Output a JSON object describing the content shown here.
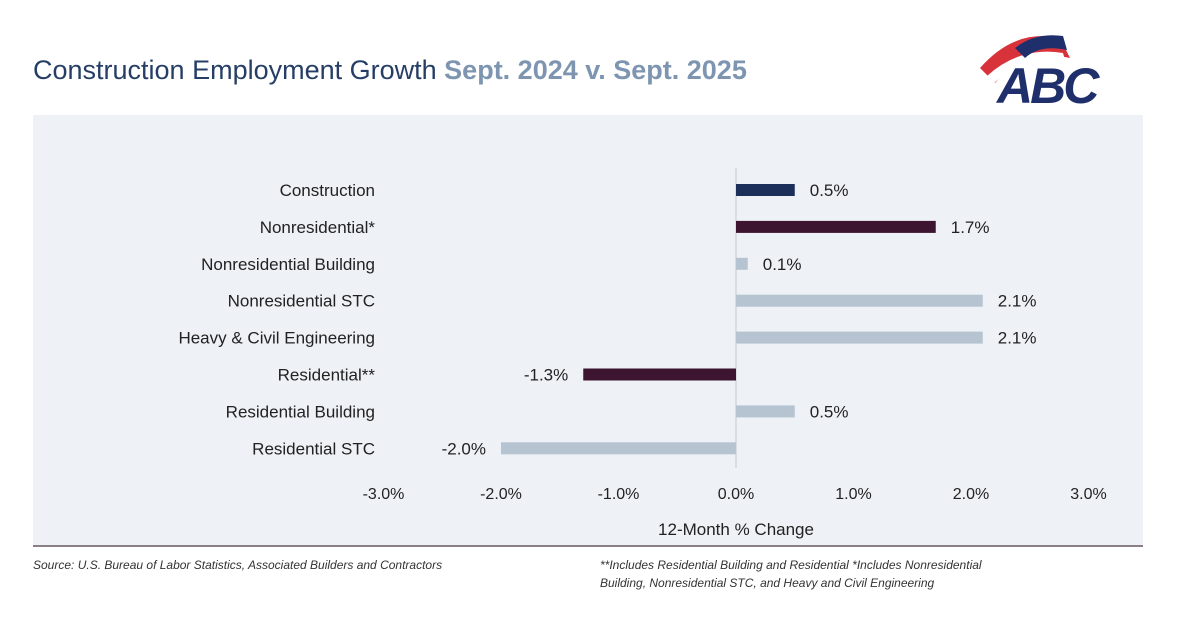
{
  "header": {
    "title_main": "Construction Employment Growth",
    "title_sub": "Sept. 2024 v. Sept. 2025",
    "logo_text": "ABC"
  },
  "colors": {
    "navy": "#1b2f5a",
    "maroon": "#3e1530",
    "light": "#b5c4d0"
  },
  "chart_data": {
    "type": "bar",
    "orientation": "horizontal",
    "title": "Construction Employment Growth Sept. 2024 v. Sept. 2025",
    "xlabel": "12-Month % Change",
    "xlim": [
      -3.0,
      3.0
    ],
    "xticks": [
      "-3.0%",
      "-2.0%",
      "-1.0%",
      "0.0%",
      "1.0%",
      "2.0%",
      "3.0%"
    ],
    "xtick_values": [
      -3,
      -2,
      -1,
      0,
      1,
      2,
      3
    ],
    "categories": [
      "Construction",
      "Nonresidential*",
      "Nonresidential Building",
      "Nonresidential STC",
      "Heavy & Civil Engineering",
      "Residential**",
      "Residential Building",
      "Residential STC"
    ],
    "values": [
      0.5,
      1.7,
      0.1,
      2.1,
      2.1,
      -1.3,
      0.5,
      -2.0
    ],
    "labels": [
      "0.5%",
      "1.7%",
      "0.1%",
      "2.1%",
      "2.1%",
      "-1.3%",
      "0.5%",
      "-2.0%"
    ],
    "bar_colors": [
      "navy",
      "maroon",
      "light",
      "light",
      "light",
      "maroon",
      "light",
      "light"
    ]
  },
  "footer": {
    "source": "Source: U.S. Bureau of Labor Statistics, Associated Builders and Contractors",
    "note_line1": "**Includes Residential Building and Residential *Includes Nonresidential",
    "note_line2": "Building, Nonresidential STC, and Heavy and Civil Engineering"
  }
}
